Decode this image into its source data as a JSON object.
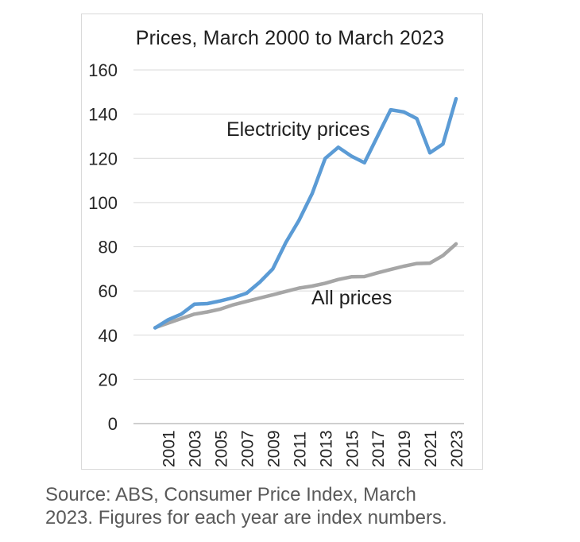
{
  "chart_data": {
    "type": "line",
    "title": "Prices, March 2000 to March 2023",
    "x_years": [
      2000,
      2001,
      2002,
      2003,
      2004,
      2005,
      2006,
      2007,
      2008,
      2009,
      2010,
      2011,
      2012,
      2013,
      2014,
      2015,
      2016,
      2017,
      2018,
      2019,
      2020,
      2021,
      2022,
      2023
    ],
    "series": [
      {
        "name": "Electricity prices",
        "color": "#5B9BD5",
        "values": [
          43.3,
          47,
          49.5,
          54,
          54.3,
          55.5,
          57,
          59,
          64,
          70,
          82,
          92,
          104,
          120,
          125,
          121,
          118,
          130,
          142,
          141,
          138,
          122.5,
          126.5,
          147
        ]
      },
      {
        "name": "All prices",
        "color": "#A6A6A6",
        "values": [
          43.4,
          45.5,
          47.5,
          49.5,
          50.5,
          51.8,
          53.8,
          55.3,
          56.8,
          58.3,
          59.8,
          61.3,
          62.2,
          63.5,
          65.2,
          66.4,
          66.5,
          68.2,
          69.7,
          71.2,
          72.4,
          72.6,
          76,
          81.3
        ]
      }
    ],
    "annotations": [
      {
        "text": "Electricity prices",
        "year": 2005.45,
        "value": 132.7
      },
      {
        "text": "All prices",
        "year": 2011.95,
        "value": 56.6
      }
    ],
    "ylim": [
      0,
      160
    ],
    "y_ticks": [
      0,
      20,
      40,
      60,
      80,
      100,
      120,
      140,
      160
    ],
    "x_tick_years": [
      2001,
      2003,
      2005,
      2007,
      2009,
      2011,
      2013,
      2015,
      2017,
      2019,
      2021,
      2023
    ],
    "x_tick_labels": [
      "2001",
      "2003",
      "2005",
      "2007",
      "2009",
      "2011",
      "2013",
      "2015",
      "2017",
      "2019",
      "2021",
      "2023"
    ],
    "grid": "horizontal",
    "legend": "none (direct series labels on chart)"
  },
  "colors": {
    "electricity_line": "#5B9BD5",
    "all_prices_line": "#A6A6A6",
    "gridline": "#D9D9D9",
    "axis_line": "#BFBFBF",
    "frame_border": "#D9D9D9",
    "tick_label": "#262626",
    "title_text": "#1f1f1f",
    "source_text": "#595959"
  },
  "source_note": {
    "line1": "Source: ABS, Consumer Price Index, March",
    "line2": "2023. Figures for each year are index numbers."
  }
}
